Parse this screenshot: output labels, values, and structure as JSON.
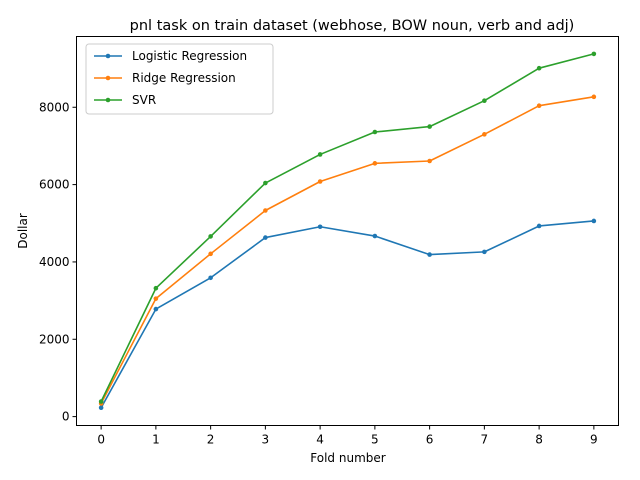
{
  "chart_data": {
    "type": "line",
    "title": "pnl task on train dataset (webhose, BOW noun, verb and adj)",
    "xlabel": "Fold number",
    "ylabel": "Dollar",
    "x": [
      0,
      1,
      2,
      3,
      4,
      5,
      6,
      7,
      8,
      9
    ],
    "x_ticks": [
      "0",
      "1",
      "2",
      "3",
      "4",
      "5",
      "6",
      "7",
      "8",
      "9"
    ],
    "y_ticks": [
      "0",
      "2000",
      "4000",
      "6000",
      "8000"
    ],
    "xlim": [
      -0.45,
      9.45
    ],
    "ylim": [
      -230,
      9830
    ],
    "grid": false,
    "legend_position": "upper-left",
    "series": [
      {
        "name": "Logistic Regression",
        "color": "#1f77b4",
        "values": [
          230,
          2780,
          3590,
          4630,
          4910,
          4670,
          4190,
          4260,
          4930,
          5060
        ]
      },
      {
        "name": "Ridge Regression",
        "color": "#ff7f0e",
        "values": [
          340,
          3050,
          4210,
          5330,
          6080,
          6550,
          6610,
          7300,
          8040,
          8270
        ]
      },
      {
        "name": "SVR",
        "color": "#2ca02c",
        "values": [
          390,
          3320,
          4660,
          6040,
          6780,
          7360,
          7500,
          8170,
          9010,
          9380
        ]
      }
    ]
  }
}
